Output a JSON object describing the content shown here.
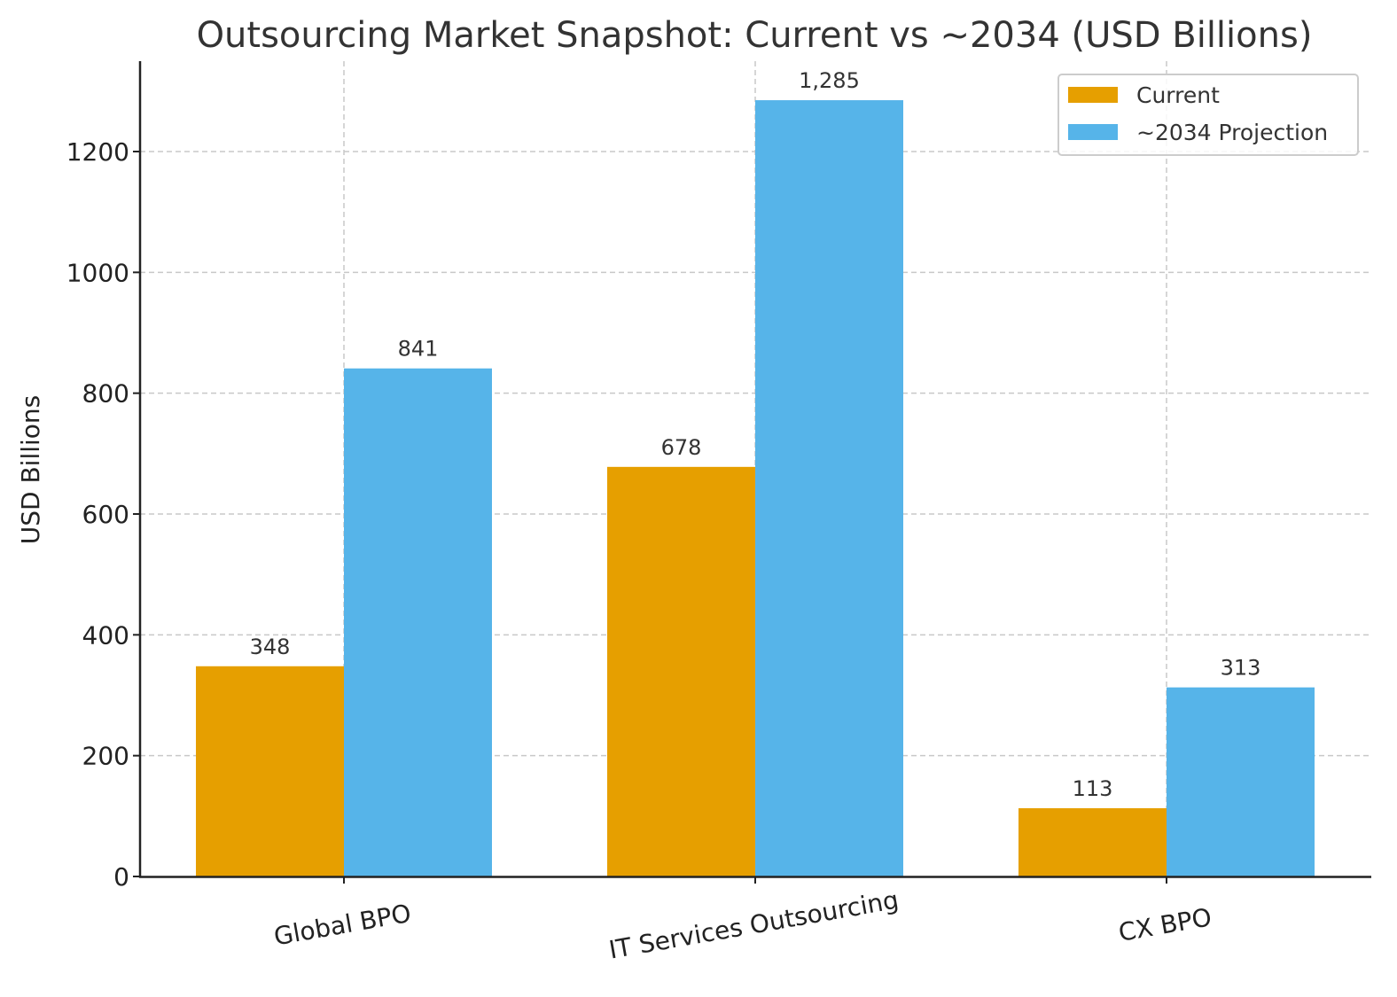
{
  "chart_data": {
    "type": "bar",
    "title": "Outsourcing Market Snapshot: Current vs ~2034 (USD Billions)",
    "xlabel": "",
    "ylabel": "USD Billions",
    "categories": [
      "Global BPO",
      "IT Services Outsourcing",
      "CX BPO"
    ],
    "series": [
      {
        "name": "Current",
        "color": "#E69F00",
        "values": [
          348,
          678,
          113
        ],
        "labels": [
          "348",
          "678",
          "113"
        ]
      },
      {
        "name": "~2034 Projection",
        "color": "#56B4E9",
        "values": [
          841,
          1285,
          313
        ],
        "labels": [
          "841",
          "1,285",
          "313"
        ]
      }
    ],
    "ylim": [
      0,
      1350
    ],
    "yticks": [
      0,
      200,
      400,
      600,
      800,
      1000,
      1200
    ],
    "ytick_labels": [
      "0",
      "200",
      "400",
      "600",
      "800",
      "1000",
      "1200"
    ],
    "grid": true,
    "grid_style": "dashed",
    "legend_position": "top-right",
    "xtick_rotation_deg": -10
  }
}
